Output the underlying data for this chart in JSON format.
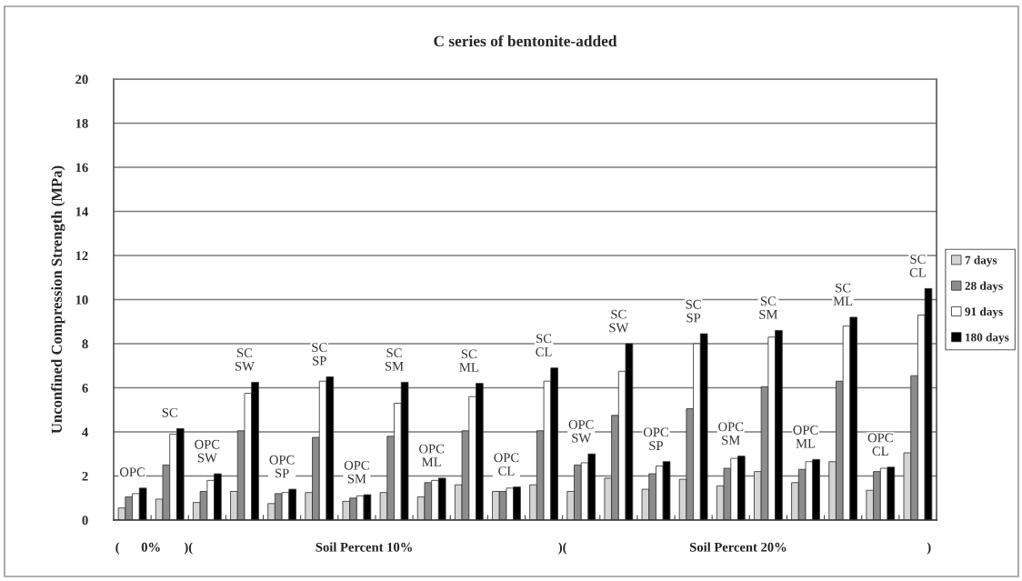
{
  "chart_data": {
    "type": "bar",
    "title": "C series of bentonite-added",
    "ylabel": "Unconfined Compression Strength (MPa)",
    "categories": [
      "OPC",
      "SC",
      "OPC\nSW",
      "SC\nSW",
      "OPC\nSP",
      "SC\nSP",
      "OPC\nSM",
      "SC\nSM",
      "OPC\nML",
      "SC\nML",
      "OPC\nCL",
      "SC\nCL",
      "OPC\nSW",
      "SC\nSW",
      "OPC\nSP",
      "SC\nSP",
      "OPC\nSM",
      "SC\nSM",
      "OPC\nML",
      "SC\nML",
      "OPC\nCL",
      "SC\nCL"
    ],
    "series": [
      {
        "name": "7 days",
        "color": "#d4d4d4",
        "values": [
          0.55,
          0.95,
          0.8,
          1.3,
          0.75,
          1.25,
          0.85,
          1.25,
          1.05,
          1.6,
          1.3,
          1.6,
          1.3,
          1.9,
          1.4,
          1.85,
          1.55,
          2.2,
          1.7,
          2.65,
          1.35,
          3.05
        ]
      },
      {
        "name": "28 days",
        "color": "#8c8c8c",
        "values": [
          1.05,
          2.5,
          1.3,
          4.05,
          1.2,
          3.75,
          1.0,
          3.8,
          1.7,
          4.05,
          1.3,
          4.05,
          2.5,
          4.75,
          2.1,
          5.05,
          2.35,
          6.05,
          2.3,
          6.3,
          2.2,
          6.55
        ]
      },
      {
        "name": "91 days",
        "color": "#ffffff",
        "values": [
          1.2,
          3.9,
          1.8,
          5.75,
          1.25,
          6.3,
          1.1,
          5.3,
          1.8,
          5.6,
          1.45,
          6.3,
          2.6,
          6.75,
          2.45,
          8.0,
          2.8,
          8.3,
          2.65,
          8.8,
          2.35,
          9.3
        ]
      },
      {
        "name": "180 days",
        "color": "#000000",
        "values": [
          1.45,
          4.15,
          2.1,
          6.25,
          1.4,
          6.5,
          1.15,
          6.25,
          1.9,
          6.2,
          1.5,
          6.9,
          3.0,
          8.0,
          2.65,
          8.45,
          2.9,
          8.6,
          2.75,
          9.2,
          2.4,
          10.5
        ]
      }
    ],
    "ylim": [
      0,
      20
    ],
    "yticks": [
      0,
      2,
      4,
      6,
      8,
      10,
      12,
      14,
      16,
      18,
      20
    ],
    "grid": "y",
    "legend": "right",
    "annotations": [
      "(",
      "0%",
      ")(",
      "Soil Percent 10%",
      ")(",
      "Soil Percent 20%",
      ")"
    ]
  }
}
